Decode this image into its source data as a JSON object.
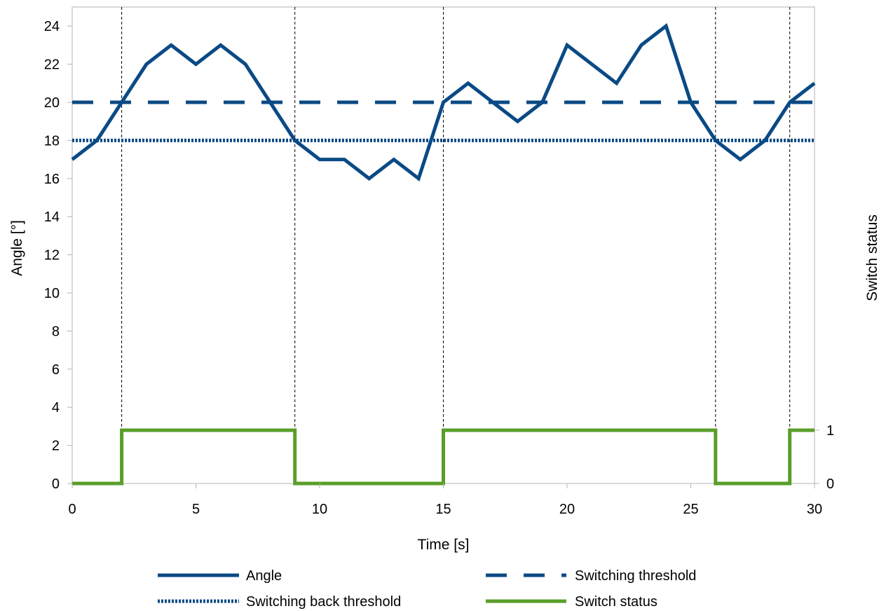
{
  "chart_data": {
    "type": "line",
    "title": "",
    "xlabel": "Time [s]",
    "ylabel": "Angle [°]",
    "y2label": "Switch status",
    "xlim": [
      0,
      30
    ],
    "ylim": [
      0,
      25
    ],
    "y2lim": [
      0,
      1
    ],
    "x_ticks": [
      0,
      5,
      10,
      15,
      20,
      25,
      30
    ],
    "y_ticks": [
      0,
      2,
      4,
      6,
      8,
      10,
      12,
      14,
      16,
      18,
      20,
      22,
      24
    ],
    "y2_ticks": [
      0,
      1
    ],
    "grid": false,
    "legend_position": "bottom",
    "x": [
      0,
      1,
      2,
      3,
      4,
      5,
      6,
      7,
      8,
      9,
      10,
      11,
      12,
      13,
      14,
      15,
      16,
      17,
      18,
      19,
      20,
      21,
      22,
      23,
      24,
      25,
      26,
      27,
      28,
      29,
      30
    ],
    "series": [
      {
        "name": "Angle",
        "axis": "left",
        "style": "solid",
        "color": "#0a4a85",
        "values": [
          17,
          18,
          20,
          22,
          23,
          22,
          23,
          22,
          20,
          18,
          17,
          17,
          16,
          17,
          16,
          20,
          21,
          20,
          19,
          20,
          23,
          22,
          21,
          23,
          24,
          20,
          18,
          17,
          18,
          20,
          21
        ]
      },
      {
        "name": "Switching threshold",
        "axis": "left",
        "style": "dashed",
        "color": "#0a4a85",
        "values": [
          20,
          20,
          20,
          20,
          20,
          20,
          20,
          20,
          20,
          20,
          20,
          20,
          20,
          20,
          20,
          20,
          20,
          20,
          20,
          20,
          20,
          20,
          20,
          20,
          20,
          20,
          20,
          20,
          20,
          20,
          20
        ]
      },
      {
        "name": "Switching back threshold",
        "axis": "left",
        "style": "dotted",
        "color": "#0a4a85",
        "values": [
          18,
          18,
          18,
          18,
          18,
          18,
          18,
          18,
          18,
          18,
          18,
          18,
          18,
          18,
          18,
          18,
          18,
          18,
          18,
          18,
          18,
          18,
          18,
          18,
          18,
          18,
          18,
          18,
          18,
          18,
          18
        ]
      },
      {
        "name": "Switch status",
        "axis": "right",
        "style": "step",
        "color": "#5a9e2a",
        "values": [
          0,
          0,
          1,
          1,
          1,
          1,
          1,
          1,
          1,
          0,
          0,
          0,
          0,
          0,
          0,
          1,
          1,
          1,
          1,
          1,
          1,
          1,
          1,
          1,
          1,
          1,
          0,
          0,
          0,
          1,
          1
        ]
      }
    ],
    "vertical_markers": [
      2,
      9,
      15,
      26,
      29
    ]
  }
}
